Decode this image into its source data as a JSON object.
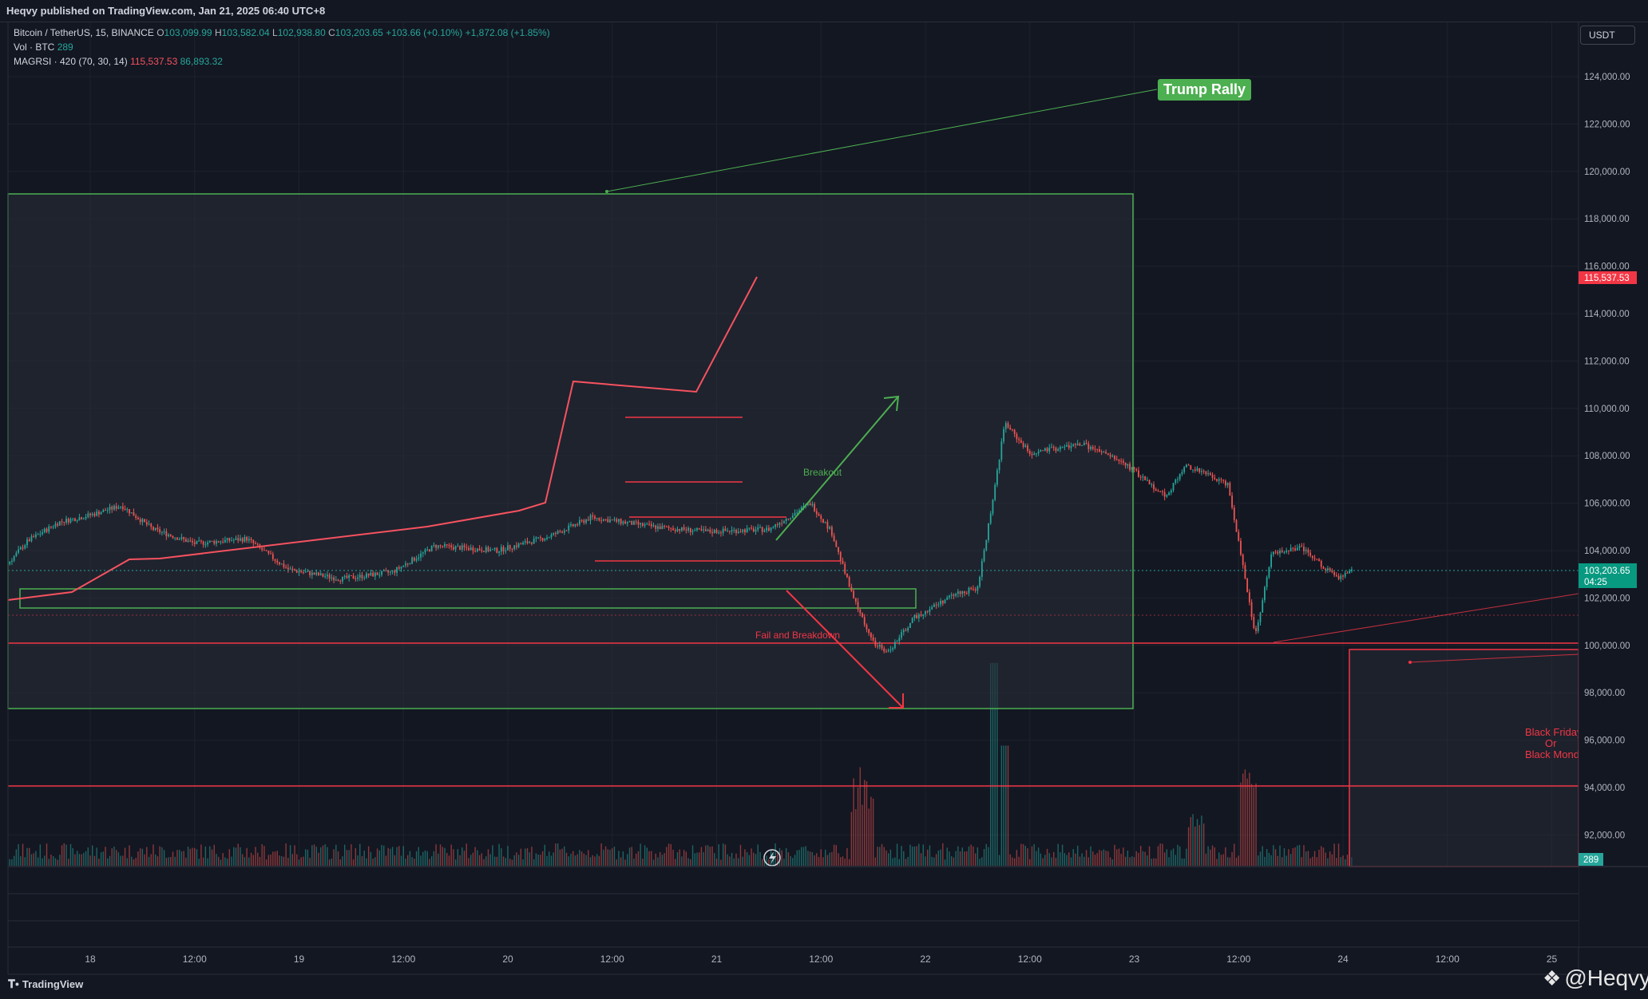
{
  "header": {
    "title": "Heqvy published on TradingView.com, Jan 21, 2025 06:40 UTC+8"
  },
  "legend": {
    "symbol": "Bitcoin / TetherUS, 15, BINANCE",
    "o_key": "O",
    "o": "103,099.99",
    "h_key": "H",
    "h": "103,582.04",
    "l_key": "L",
    "l": "102,938.80",
    "c_key": "C",
    "c": "103,203.65",
    "change": "+103.66 (+0.10%)",
    "change2": "+1,872.08 (+1.85%)",
    "vol_label": "Vol · BTC",
    "vol": "289",
    "magrsi_label": "MAGRSI · 420 (70, 30, 14)",
    "magrsi_1": "115,537.53",
    "magrsi_2": "86,893.32"
  },
  "currency": "USDT",
  "footer": {
    "brand": "TradingView",
    "watermark": "@Heqvy"
  },
  "colors": {
    "up": "#26a69a",
    "down": "#ef5350",
    "red_line": "#f23645",
    "green_line": "#4caf50",
    "bg": "#131722"
  },
  "chart_data": {
    "type": "candlestick",
    "symbol": "BTCUSDT",
    "interval": "15",
    "ylim": [
      90500,
      126000
    ],
    "y_ticks": [
      "124,000.00",
      "122,000.00",
      "120,000.00",
      "118,000.00",
      "116,000.00",
      "114,000.00",
      "112,000.00",
      "110,000.00",
      "108,000.00",
      "106,000.00",
      "104,000.00",
      "102,000.00",
      "100,000.00",
      "98,000.00",
      "96,000.00",
      "94,000.00",
      "92,000.00"
    ],
    "x_ticks": [
      "18",
      "12:00",
      "19",
      "12:00",
      "20",
      "12:00",
      "21",
      "12:00",
      "22",
      "12:00",
      "23",
      "12:00",
      "24",
      "12:00",
      "25"
    ],
    "price_path": [
      [
        17.0,
        101800
      ],
      [
        17.3,
        102300
      ],
      [
        17.55,
        102900
      ],
      [
        17.7,
        104400
      ],
      [
        17.85,
        105200
      ],
      [
        18.0,
        105500
      ],
      [
        18.15,
        105900
      ],
      [
        18.3,
        104900
      ],
      [
        18.5,
        104300
      ],
      [
        18.75,
        104500
      ],
      [
        18.95,
        103200
      ],
      [
        19.2,
        102800
      ],
      [
        19.45,
        103100
      ],
      [
        19.65,
        104200
      ],
      [
        19.95,
        104000
      ],
      [
        20.2,
        104600
      ],
      [
        20.4,
        105400
      ],
      [
        20.7,
        105000
      ],
      [
        20.95,
        104800
      ],
      [
        21.25,
        104900
      ],
      [
        21.45,
        106000
      ],
      [
        21.55,
        104800
      ],
      [
        21.65,
        102100
      ],
      [
        21.75,
        100100
      ],
      [
        21.82,
        99700
      ],
      [
        21.95,
        101200
      ],
      [
        22.15,
        102200
      ],
      [
        22.25,
        102400
      ],
      [
        22.32,
        106000
      ],
      [
        22.38,
        109400
      ],
      [
        22.5,
        108100
      ],
      [
        22.75,
        108500
      ],
      [
        22.95,
        107700
      ],
      [
        23.15,
        106300
      ],
      [
        23.25,
        107600
      ],
      [
        23.45,
        106800
      ],
      [
        23.52,
        103400
      ],
      [
        23.58,
        100400
      ],
      [
        23.66,
        103900
      ],
      [
        23.8,
        104100
      ],
      [
        23.98,
        102800
      ],
      [
        24.05,
        103203.65
      ]
    ],
    "volume_max": 289,
    "last_price": "103,203.65",
    "countdown": "04:25",
    "magrsi_value": "115,537.53",
    "volume_label": "289",
    "annotations": [
      {
        "kind": "text",
        "text": "Trump Rally",
        "color": "#4caf50"
      },
      {
        "kind": "text",
        "text": "Breakout",
        "color": "#4caf50"
      },
      {
        "kind": "text",
        "text": "Fail and Breakdown",
        "color": "#f23645"
      },
      {
        "kind": "text",
        "text": "Black Friday",
        "color": "#f23645"
      },
      {
        "kind": "text",
        "text": "Or",
        "color": "#f23645"
      },
      {
        "kind": "text",
        "text": "Black Monday",
        "color": "#f23645"
      }
    ],
    "grid": true
  }
}
